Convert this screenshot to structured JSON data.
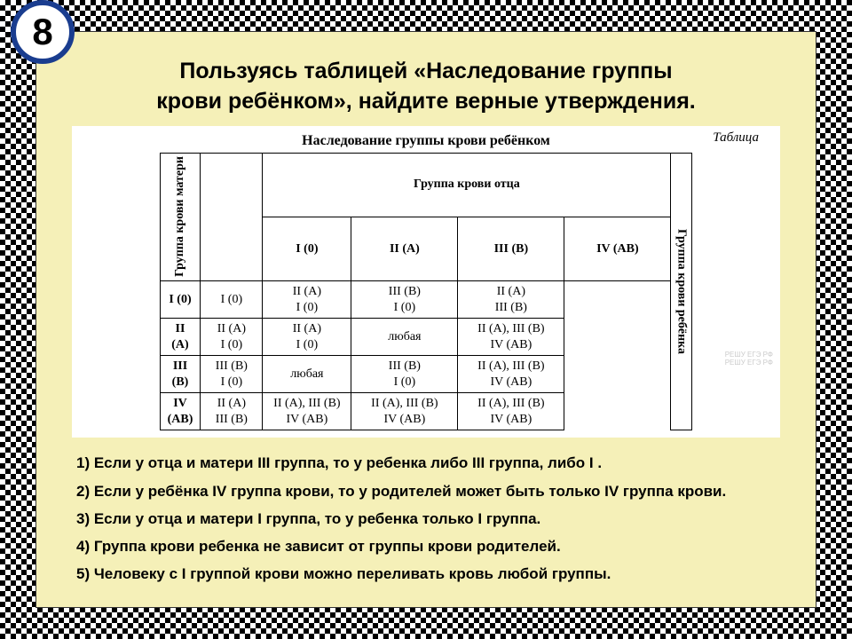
{
  "badge": "8",
  "title_line1": "Пользуясь таб­ли­цей «Наследование груп­пы",
  "title_line2": "крови ребёнком», найдите верные утверждения.",
  "table_label": "Таблица",
  "table_title": "Наследование группы крови ребёнком",
  "father_header": "Группа крови отца",
  "mother_header": "Группа крови матери",
  "child_header": "Группа крови ребёнка",
  "col_headers": [
    "I (0)",
    "II (A)",
    "III (B)",
    "IV (AB)"
  ],
  "row_headers": [
    "I (0)",
    "II (A)",
    "III (B)",
    "IV (AB)"
  ],
  "cells": [
    [
      "I (0)",
      "II (A)<br>I (0)",
      "III (B)<br>I (0)",
      "II (A)<br>III (B)"
    ],
    [
      "II (A)<br>I (0)",
      "II (A)<br>I (0)",
      "любая",
      "II (A), III (B)<br>IV (AB)"
    ],
    [
      "III (B)<br>I (0)",
      "любая",
      "III (B)<br>I (0)",
      "II (A), III (B)<br>IV (AB)"
    ],
    [
      "II (A)<br>III (B)",
      "II (A), III (B)<br>IV (AB)",
      "II (A), III (B)<br>IV (AB)",
      "II (A), III (B)<br>IV (AB)"
    ]
  ],
  "statements": [
    "1) Если у отца и ма­те­ри III группа, то у ребенка либо III группа, либо I .",
    "2) Если у ребёнка IV груп­па крови, то у родителей может быть только IV груп­па крови.",
    "3) Если у отца и ма­те­ри I группа, то у ребенка только I группа.",
    "4) Группа крови ребенка не зависит от группы крови родителей.",
    "5) Человеку с I группой крови можно переливать кровь любой группы."
  ],
  "colors": {
    "content_bg": "#f5f0b8",
    "badge_border": "#1a3d8f"
  }
}
